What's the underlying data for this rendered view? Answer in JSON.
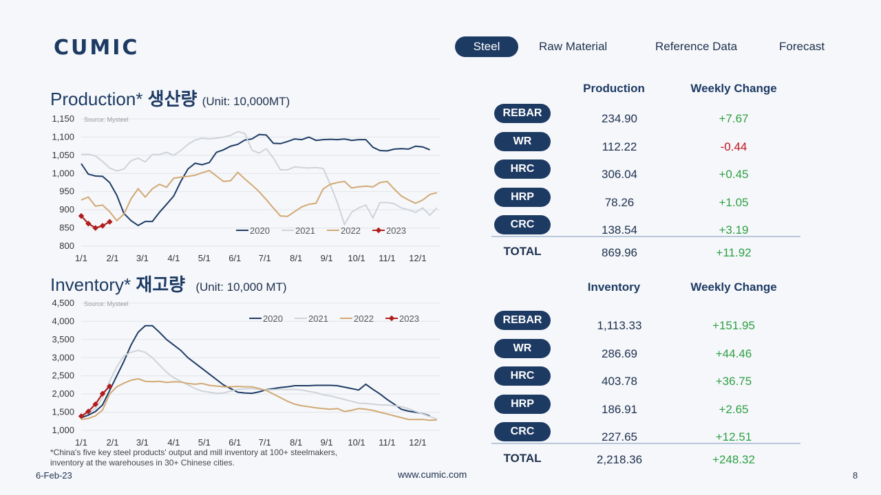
{
  "header": {
    "logo": "CUMIC",
    "tabs": [
      "Steel",
      "Raw Material",
      "Reference Data",
      "Forecast"
    ]
  },
  "production": {
    "title_en": "Production*",
    "title_kr": "생산량",
    "unit": "(Unit: 10,000MT)",
    "col1": "Production",
    "col2": "Weekly Change",
    "rows": [
      {
        "label": "REBAR",
        "value": "234.90",
        "change": "+7.67"
      },
      {
        "label": "WR",
        "value": "112.22",
        "change": "-0.44"
      },
      {
        "label": "HRC",
        "value": "306.04",
        "change": "+0.45"
      },
      {
        "label": "HRP",
        "value": "78.26",
        "change": "+1.05"
      },
      {
        "label": "CRC",
        "value": "138.54",
        "change": "+3.19"
      }
    ],
    "total": {
      "label": "TOTAL",
      "value": "869.96",
      "change": "+11.92"
    }
  },
  "inventory": {
    "title_en": "Inventory*",
    "title_kr": "재고량",
    "unit": "(Unit: 10,000 MT)",
    "col1": "Inventory",
    "col2": "Weekly Change",
    "rows": [
      {
        "label": "REBAR",
        "value": "1,113.33",
        "change": "+151.95"
      },
      {
        "label": "WR",
        "value": "286.69",
        "change": "+44.46"
      },
      {
        "label": "HRC",
        "value": "403.78",
        "change": "+36.75"
      },
      {
        "label": "HRP",
        "value": "186.91",
        "change": "+2.65"
      },
      {
        "label": "CRC",
        "value": "227.65",
        "change": "+12.51"
      }
    ],
    "total": {
      "label": "TOTAL",
      "value": "2,218.36",
      "change": "+248.32"
    }
  },
  "footer": {
    "note_line1": "*China's five key steel products' output and mill inventory at 100+ steelmakers,",
    "note_line2": "inventory at the warehouses in 30+ Chinese cities.",
    "date": "6-Feb-23",
    "url": "www.cumic.com",
    "page": "8"
  },
  "colors": {
    "y2020": "#1d3a63",
    "y2021": "#cfd3d8",
    "y2022": "#d2a873",
    "y2023": "#b01c1c"
  },
  "chart_data": [
    {
      "type": "line",
      "source": "Source: Mysteel",
      "ylim": [
        800,
        1150
      ],
      "yticks": [
        800,
        850,
        900,
        950,
        1000,
        1050,
        1100,
        1150
      ],
      "ytick_labels": [
        "800",
        "850",
        "900",
        "950",
        "1,000",
        "1,050",
        "1,100",
        "1,150"
      ],
      "xlim": [
        1,
        51.5
      ],
      "xticks": [
        1,
        5.4,
        9.6,
        14,
        18.3,
        22.6,
        26.8,
        31.2,
        35.5,
        39.7,
        44,
        48.3
      ],
      "xtick_labels": [
        "1/1",
        "2/1",
        "3/1",
        "4/1",
        "5/1",
        "6/1",
        "7/1",
        "8/1",
        "9/1",
        "10/1",
        "11/1",
        "12/1"
      ],
      "legend_position": "bottom-right",
      "series": [
        {
          "name": "2020",
          "x": [
            1,
            2,
            3,
            4,
            5,
            6,
            7,
            8,
            9,
            10,
            11,
            12,
            13,
            14,
            15,
            16,
            17,
            18,
            19,
            20,
            21,
            22,
            23,
            24,
            25,
            26,
            27,
            28,
            29,
            30,
            31,
            32,
            33,
            34,
            35,
            36,
            37,
            38,
            39,
            40,
            41,
            42,
            43,
            44,
            45,
            46,
            47,
            48,
            49,
            50
          ],
          "values": [
            1027,
            998,
            993,
            992,
            975,
            940,
            890,
            870,
            857,
            868,
            868,
            893,
            915,
            938,
            978,
            1012,
            1028,
            1024,
            1030,
            1058,
            1065,
            1075,
            1080,
            1092,
            1095,
            1107,
            1106,
            1083,
            1082,
            1088,
            1095,
            1093,
            1100,
            1091,
            1093,
            1094,
            1093,
            1095,
            1091,
            1093,
            1093,
            1072,
            1063,
            1062,
            1067,
            1068,
            1067,
            1075,
            1073,
            1065
          ]
        },
        {
          "name": "2021",
          "x": [
            1,
            2,
            3,
            4,
            5,
            6,
            7,
            8,
            9,
            10,
            11,
            12,
            13,
            14,
            15,
            16,
            17,
            18,
            19,
            20,
            21,
            22,
            23,
            24,
            25,
            26,
            27,
            28,
            29,
            30,
            31,
            32,
            33,
            34,
            35,
            36,
            37,
            38,
            39,
            40,
            41,
            42,
            43,
            44,
            45,
            46,
            47,
            48,
            49,
            50,
            51
          ],
          "values": [
            1052,
            1053,
            1048,
            1033,
            1015,
            1007,
            1012,
            1035,
            1042,
            1032,
            1052,
            1052,
            1058,
            1050,
            1063,
            1080,
            1092,
            1097,
            1095,
            1097,
            1100,
            1105,
            1115,
            1110,
            1064,
            1056,
            1068,
            1043,
            1010,
            1010,
            1018,
            1016,
            1015,
            1016,
            1014,
            970,
            920,
            860,
            893,
            905,
            913,
            878,
            920,
            920,
            917,
            905,
            900,
            893,
            905,
            885,
            905
          ]
        },
        {
          "name": "2022",
          "x": [
            1,
            2,
            3,
            4,
            5,
            6,
            7,
            8,
            9,
            10,
            11,
            12,
            13,
            14,
            15,
            16,
            17,
            18,
            19,
            20,
            21,
            22,
            23,
            24,
            25,
            26,
            27,
            28,
            29,
            30,
            31,
            32,
            33,
            34,
            35,
            36,
            37,
            38,
            39,
            40,
            41,
            42,
            43,
            44,
            45,
            46,
            47,
            48,
            49,
            50,
            51
          ],
          "values": [
            927,
            935,
            910,
            913,
            895,
            870,
            888,
            930,
            958,
            935,
            958,
            970,
            962,
            987,
            990,
            992,
            995,
            1002,
            1008,
            993,
            978,
            980,
            1003,
            985,
            968,
            950,
            928,
            905,
            883,
            882,
            895,
            908,
            915,
            918,
            957,
            970,
            975,
            978,
            960,
            963,
            965,
            963,
            975,
            978,
            957,
            938,
            927,
            918,
            927,
            942,
            947
          ]
        },
        {
          "name": "2023",
          "x": [
            1,
            2,
            3,
            4,
            5
          ],
          "values": [
            883,
            862,
            850,
            856,
            867
          ]
        }
      ]
    },
    {
      "type": "line",
      "source": "Source: Mysteel",
      "ylim": [
        1000,
        4500
      ],
      "yticks": [
        1000,
        1500,
        2000,
        2500,
        3000,
        3500,
        4000,
        4500
      ],
      "ytick_labels": [
        "1,000",
        "1,500",
        "2,000",
        "2,500",
        "3,000",
        "3,500",
        "4,000",
        "4,500"
      ],
      "xlim": [
        1,
        51.5
      ],
      "xticks": [
        1,
        5.4,
        9.6,
        14,
        18.3,
        22.6,
        26.8,
        31.2,
        35.5,
        39.7,
        44,
        48.3
      ],
      "xtick_labels": [
        "1/1",
        "2/1",
        "3/1",
        "4/1",
        "5/1",
        "6/1",
        "7/1",
        "8/1",
        "9/1",
        "10/1",
        "11/1",
        "12/1"
      ],
      "legend_position": "top-right",
      "series": [
        {
          "name": "2020",
          "x": [
            1,
            2,
            3,
            4,
            5,
            6,
            7,
            8,
            9,
            10,
            11,
            12,
            13,
            14,
            15,
            16,
            17,
            18,
            19,
            20,
            21,
            22,
            23,
            24,
            25,
            26,
            27,
            28,
            29,
            30,
            31,
            32,
            33,
            34,
            35,
            36,
            37,
            38,
            39,
            40,
            41,
            42,
            43,
            44,
            45,
            46,
            47,
            48,
            49,
            50
          ],
          "values": [
            1350,
            1420,
            1520,
            1700,
            2100,
            2500,
            2900,
            3350,
            3700,
            3880,
            3880,
            3700,
            3500,
            3350,
            3200,
            3000,
            2850,
            2700,
            2550,
            2400,
            2250,
            2150,
            2050,
            2030,
            2020,
            2060,
            2120,
            2150,
            2180,
            2200,
            2230,
            2230,
            2230,
            2240,
            2240,
            2240,
            2230,
            2190,
            2150,
            2110,
            2270,
            2130,
            2000,
            1850,
            1720,
            1580,
            1530,
            1500,
            1460,
            1400
          ]
        },
        {
          "name": "2021",
          "x": [
            1,
            2,
            3,
            4,
            5,
            6,
            7,
            8,
            9,
            10,
            11,
            12,
            13,
            14,
            15,
            16,
            17,
            18,
            19,
            20,
            21,
            22,
            23,
            24,
            25,
            26,
            27,
            28,
            29,
            30,
            31,
            32,
            33,
            34,
            35,
            36,
            37,
            38,
            39,
            40,
            41,
            42,
            43,
            44,
            45,
            46,
            47,
            48,
            49,
            50,
            51
          ],
          "values": [
            1400,
            1480,
            1600,
            1900,
            2350,
            2750,
            3050,
            3150,
            3200,
            3150,
            3000,
            2800,
            2600,
            2450,
            2350,
            2250,
            2150,
            2080,
            2050,
            2020,
            2030,
            2080,
            2130,
            2140,
            2150,
            2130,
            2110,
            2120,
            2130,
            2120,
            2130,
            2110,
            2070,
            2040,
            1980,
            1950,
            1900,
            1850,
            1800,
            1750,
            1740,
            1720,
            1700,
            1700,
            1680,
            1650,
            1600,
            1520,
            1450,
            1380,
            1310
          ]
        },
        {
          "name": "2022",
          "x": [
            1,
            2,
            3,
            4,
            5,
            6,
            7,
            8,
            9,
            10,
            11,
            12,
            13,
            14,
            15,
            16,
            17,
            18,
            19,
            20,
            21,
            22,
            23,
            24,
            25,
            26,
            27,
            28,
            29,
            30,
            31,
            32,
            33,
            34,
            35,
            36,
            37,
            38,
            39,
            40,
            41,
            42,
            43,
            44,
            45,
            46,
            47,
            48,
            49,
            50,
            51
          ],
          "values": [
            1300,
            1330,
            1400,
            1560,
            2000,
            2200,
            2300,
            2380,
            2420,
            2350,
            2340,
            2350,
            2320,
            2340,
            2330,
            2290,
            2270,
            2290,
            2240,
            2220,
            2200,
            2200,
            2210,
            2200,
            2200,
            2150,
            2100,
            2000,
            1900,
            1800,
            1720,
            1680,
            1650,
            1620,
            1600,
            1580,
            1600,
            1520,
            1550,
            1600,
            1580,
            1550,
            1500,
            1450,
            1400,
            1350,
            1300,
            1300,
            1300,
            1280,
            1290
          ]
        },
        {
          "name": "2023",
          "x": [
            1,
            2,
            3,
            4,
            5
          ],
          "values": [
            1390,
            1520,
            1720,
            2010,
            2210
          ]
        }
      ]
    }
  ]
}
